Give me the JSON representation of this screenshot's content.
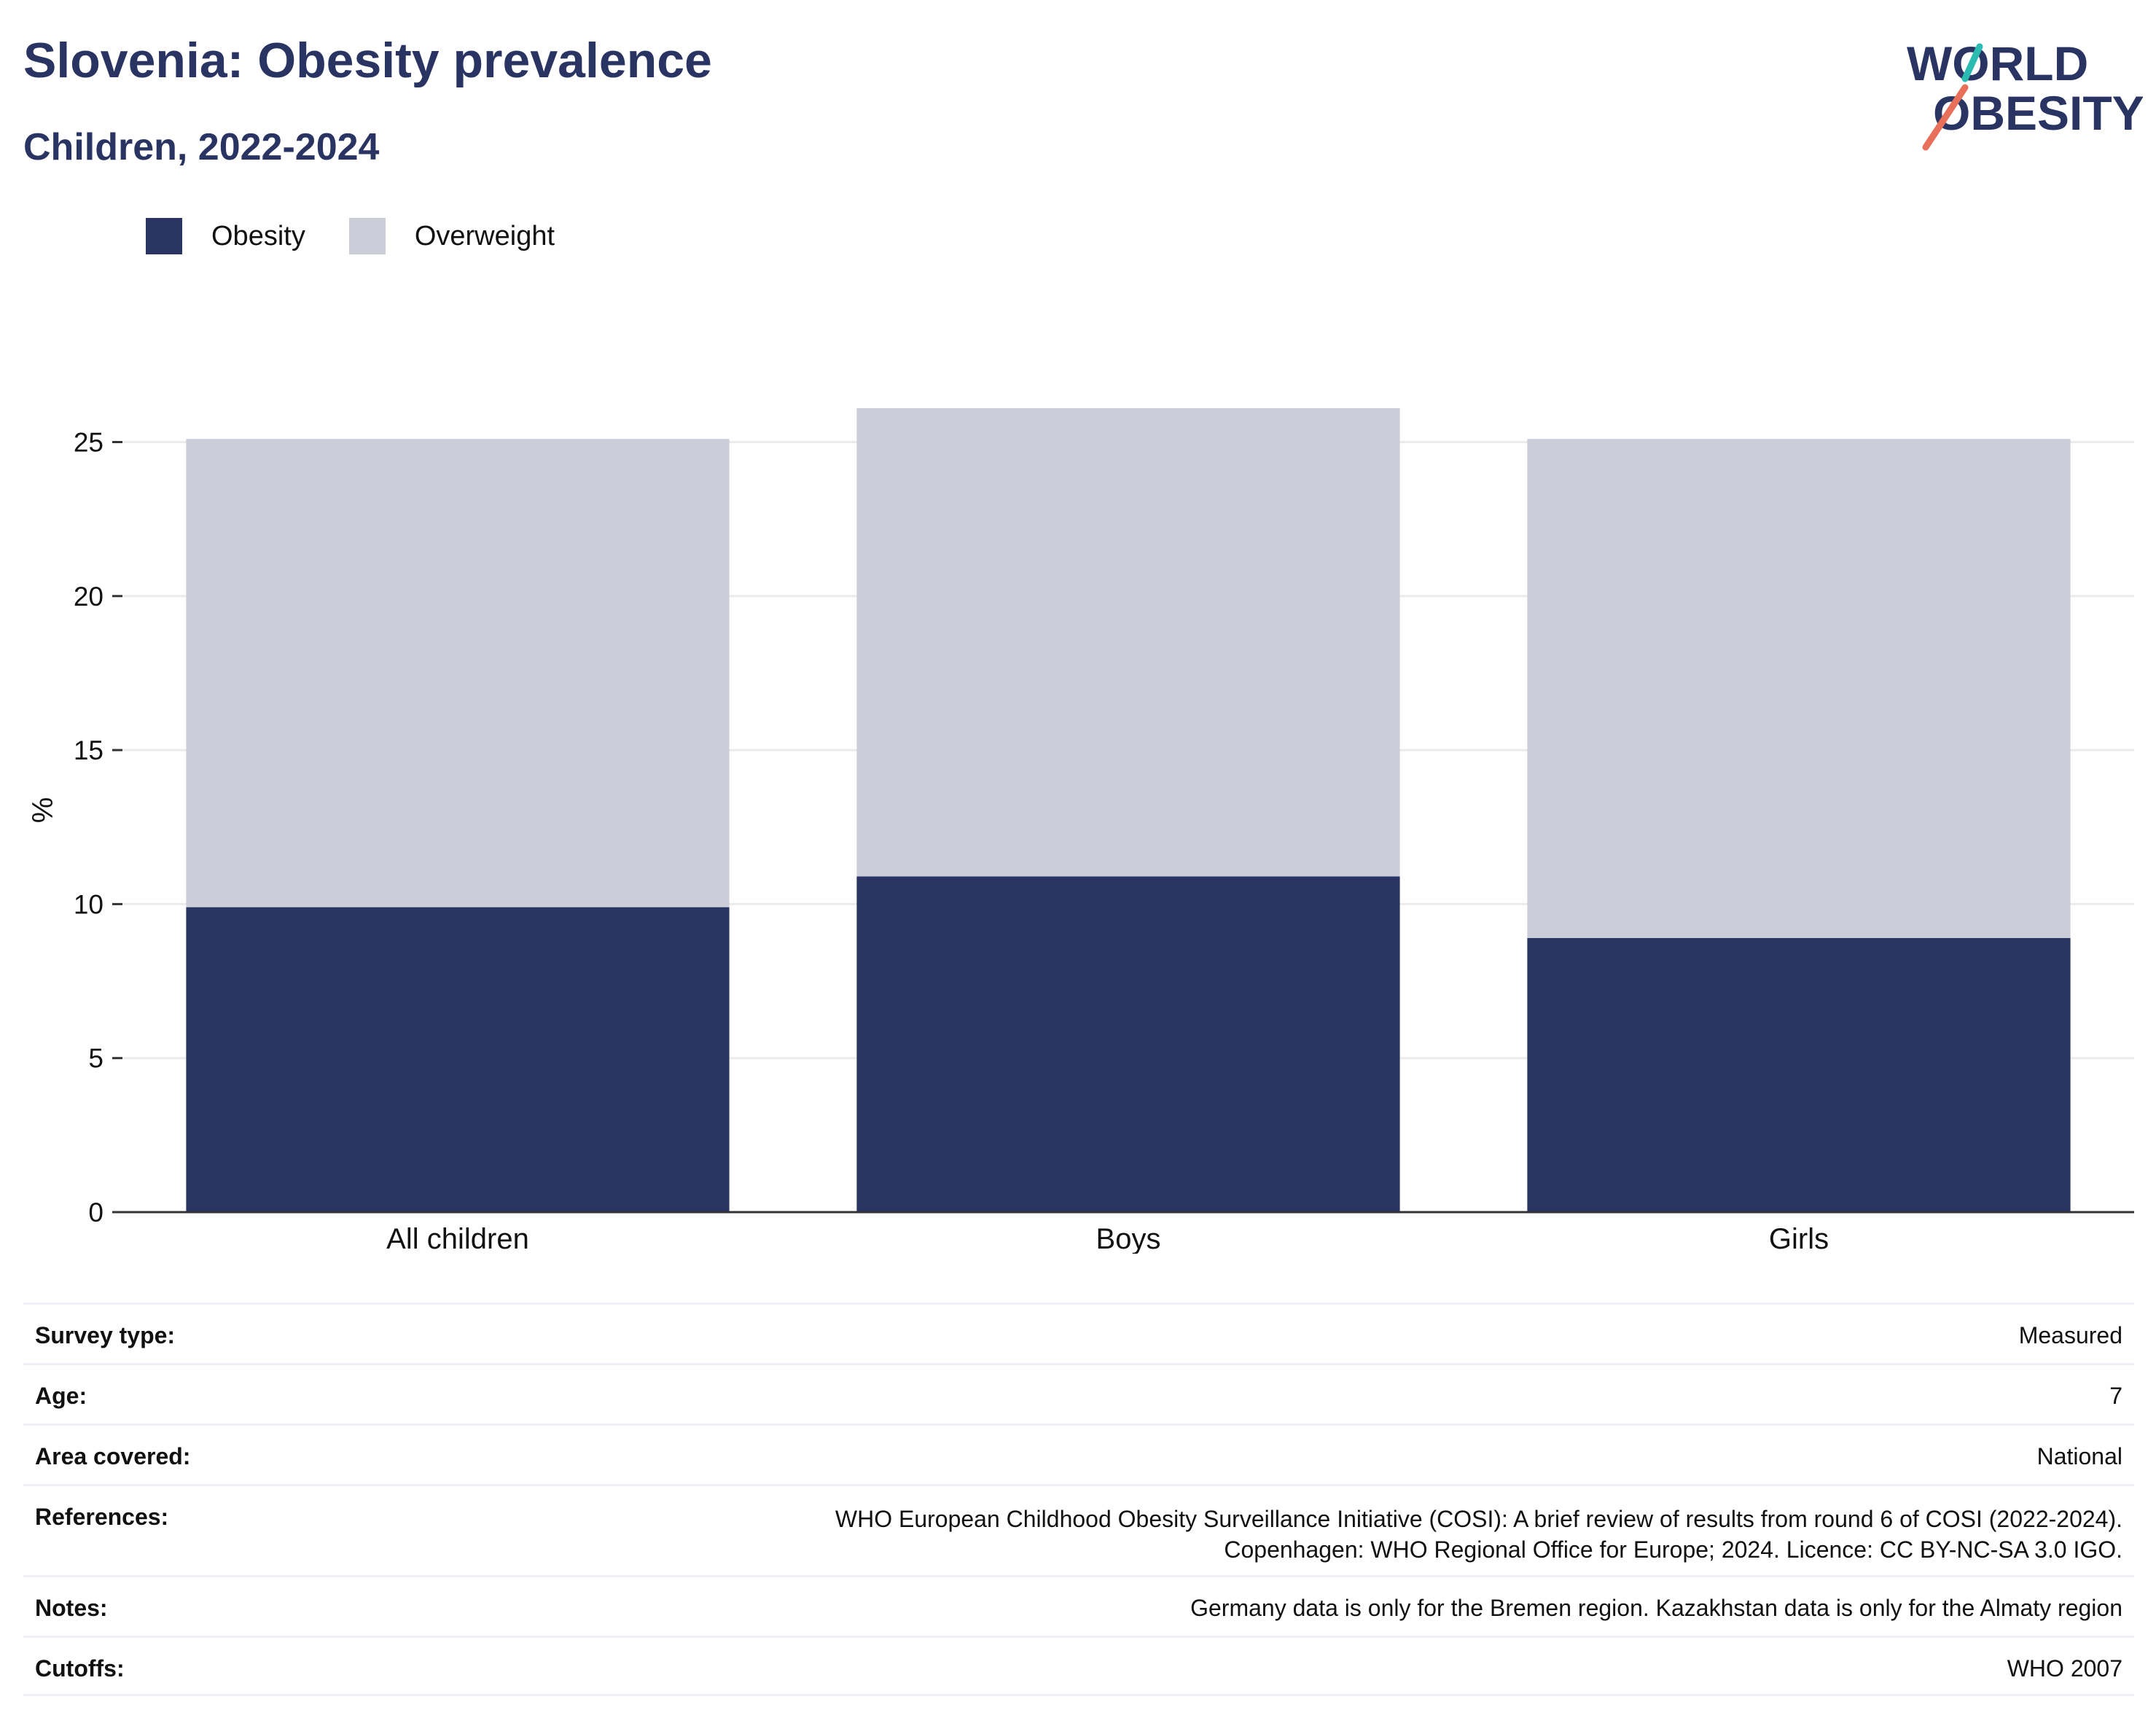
{
  "header": {
    "title": "Slovenia: Obesity prevalence",
    "subtitle": "Children, 2022-2024",
    "logo_line1": "WORLD",
    "logo_line2": "OBESITY"
  },
  "legend": {
    "items": [
      {
        "label": "Obesity",
        "color": "#293462"
      },
      {
        "label": "Overweight",
        "color": "#cbcdd9"
      }
    ]
  },
  "chart_data": {
    "type": "bar",
    "stacked": true,
    "categories": [
      "All children",
      "Boys",
      "Girls"
    ],
    "series": [
      {
        "name": "Obesity",
        "values": [
          9.9,
          10.9,
          8.9
        ],
        "color": "#293462"
      },
      {
        "name": "Overweight",
        "values": [
          15.2,
          15.2,
          16.2
        ],
        "color": "#cbcdd9"
      }
    ],
    "ylabel": "%",
    "xlabel": "",
    "ylim": [
      0,
      26.1
    ],
    "yticks": [
      0,
      5,
      10,
      15,
      20,
      25
    ],
    "grid": true,
    "legend_position": "top-left"
  },
  "metadata": {
    "rows": [
      {
        "label": "Survey type:",
        "value": "Measured"
      },
      {
        "label": "Age:",
        "value": "7"
      },
      {
        "label": "Area covered:",
        "value": "National"
      },
      {
        "label": "References:",
        "value_lines": [
          "WHO European Childhood Obesity Surveillance Initiative (COSI): A brief review of results from round 6 of COSI (2022-2024).",
          "Copenhagen: WHO Regional Office for Europe; 2024. Licence: CC BY-NC-SA 3.0 IGO."
        ]
      },
      {
        "label": "Notes:",
        "value": "Germany data is only for the Bremen region. Kazakhstan data is only for the Almaty region"
      },
      {
        "label": "Cutoffs:",
        "value": "WHO 2007"
      }
    ]
  }
}
